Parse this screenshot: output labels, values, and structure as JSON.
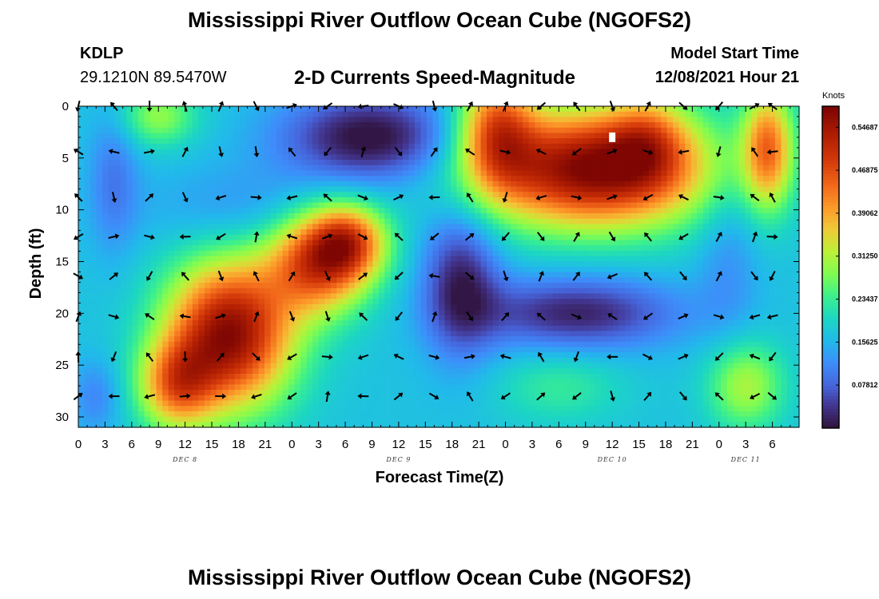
{
  "header": {
    "title": "Mississippi River Outflow Ocean Cube (NGOFS2)",
    "station_id": "KDLP",
    "station_coords": "29.1210N  89.5470W",
    "subtitle": "2-D Currents Speed-Magnitude",
    "model_start_label": "Model Start Time",
    "model_start_value": "12/08/2021 Hour 21"
  },
  "footer": {
    "title": "Mississippi River Outflow Ocean Cube (NGOFS2)"
  },
  "colors": {
    "arrow": "#000000",
    "marker": "#ffffff"
  },
  "chart_data": {
    "type": "heatmap",
    "title": "2-D Currents Speed-Magnitude",
    "xlabel": "Forecast Time(Z)",
    "ylabel": "Depth (ft)",
    "x_range_hours": [
      0,
      81
    ],
    "y_range_ft": [
      0,
      31
    ],
    "y_inverted": true,
    "x_ticks": [
      {
        "h": 0,
        "label": "0"
      },
      {
        "h": 3,
        "label": "3"
      },
      {
        "h": 6,
        "label": "6"
      },
      {
        "h": 9,
        "label": "9"
      },
      {
        "h": 12,
        "label": "12"
      },
      {
        "h": 15,
        "label": "15"
      },
      {
        "h": 18,
        "label": "18"
      },
      {
        "h": 21,
        "label": "21"
      },
      {
        "h": 24,
        "label": "0"
      },
      {
        "h": 27,
        "label": "3"
      },
      {
        "h": 30,
        "label": "6"
      },
      {
        "h": 33,
        "label": "9"
      },
      {
        "h": 36,
        "label": "12"
      },
      {
        "h": 39,
        "label": "15"
      },
      {
        "h": 42,
        "label": "18"
      },
      {
        "h": 45,
        "label": "21"
      },
      {
        "h": 48,
        "label": "0"
      },
      {
        "h": 51,
        "label": "3"
      },
      {
        "h": 54,
        "label": "6"
      },
      {
        "h": 57,
        "label": "9"
      },
      {
        "h": 60,
        "label": "12"
      },
      {
        "h": 63,
        "label": "15"
      },
      {
        "h": 66,
        "label": "18"
      },
      {
        "h": 69,
        "label": "21"
      },
      {
        "h": 72,
        "label": "0"
      },
      {
        "h": 75,
        "label": "3"
      },
      {
        "h": 78,
        "label": "6"
      }
    ],
    "y_ticks": [
      {
        "v": 0,
        "label": "0"
      },
      {
        "v": 5,
        "label": "5"
      },
      {
        "v": 10,
        "label": "10"
      },
      {
        "v": 15,
        "label": "15"
      },
      {
        "v": 20,
        "label": "20"
      },
      {
        "v": 25,
        "label": "25"
      },
      {
        "v": 30,
        "label": "30"
      }
    ],
    "date_labels": [
      {
        "h": 12,
        "label": "DEC 8"
      },
      {
        "h": 36,
        "label": "DEC 9"
      },
      {
        "h": 60,
        "label": "DEC 10"
      },
      {
        "h": 75,
        "label": "DEC 11"
      }
    ],
    "colorbar": {
      "unit": "Knots",
      "min": 0.0,
      "max": 0.585,
      "ticks": [
        {
          "v": 0.07812,
          "label": "0.07812"
        },
        {
          "v": 0.15625,
          "label": "0.15625"
        },
        {
          "v": 0.23437,
          "label": "0.23437"
        },
        {
          "v": 0.3125,
          "label": "0.31250"
        },
        {
          "v": 0.39062,
          "label": "0.39062"
        },
        {
          "v": 0.46875,
          "label": "0.46875"
        },
        {
          "v": 0.54687,
          "label": "0.54687"
        }
      ]
    },
    "speed_field": {
      "base": 0.17,
      "blobs": [
        {
          "h": 17,
          "d": 22,
          "sh": 5,
          "sd": 5,
          "a": 0.4
        },
        {
          "h": 27,
          "d": 15,
          "sh": 4,
          "sd": 3.5,
          "a": 0.3
        },
        {
          "h": 30.5,
          "d": 13,
          "sh": 3,
          "sd": 2.5,
          "a": 0.22
        },
        {
          "h": 11,
          "d": 27,
          "sh": 3,
          "sd": 3,
          "a": 0.22
        },
        {
          "h": 58,
          "d": 6,
          "sh": 9,
          "sd": 4,
          "a": 0.42
        },
        {
          "h": 47,
          "d": 2,
          "sh": 3,
          "sd": 4,
          "a": 0.24
        },
        {
          "h": 64,
          "d": 3,
          "sh": 3,
          "sd": 3,
          "a": 0.12
        },
        {
          "h": 77.5,
          "d": 4,
          "sh": 2,
          "sd": 4,
          "a": 0.25
        },
        {
          "h": 75,
          "d": 27,
          "sh": 3,
          "sd": 3,
          "a": 0.14
        },
        {
          "h": 54,
          "d": 27,
          "sh": 5,
          "sd": 2.5,
          "a": 0.06
        },
        {
          "h": 9,
          "d": 1,
          "sh": 3,
          "sd": 2,
          "a": 0.12
        },
        {
          "h": 33,
          "d": 3,
          "sh": 7,
          "sd": 3,
          "a": -0.18
        },
        {
          "h": 43,
          "d": 17,
          "sh": 3,
          "sd": 5,
          "a": -0.15
        },
        {
          "h": 56,
          "d": 20,
          "sh": 8,
          "sd": 2.5,
          "a": -0.15
        },
        {
          "h": 4,
          "d": 7,
          "sh": 2,
          "sd": 5,
          "a": -0.07
        },
        {
          "h": 2,
          "d": 28,
          "sh": 2,
          "sd": 2.5,
          "a": -0.06
        },
        {
          "h": 19,
          "d": 10,
          "sh": 8,
          "sd": 3,
          "a": -0.05
        },
        {
          "h": 73,
          "d": 14,
          "sh": 2.5,
          "sd": 6,
          "a": -0.05
        }
      ]
    },
    "arrow_hours": [
      0,
      4,
      8,
      12,
      16,
      20,
      24,
      28,
      32,
      36,
      40,
      44,
      48,
      52,
      56,
      60,
      64,
      68,
      72,
      76,
      78
    ],
    "arrow_depths": [
      0,
      4.4,
      8.8,
      12.6,
      16.4,
      20.3,
      24.2,
      28
    ],
    "marker": {
      "h": 60,
      "d": 3
    }
  }
}
